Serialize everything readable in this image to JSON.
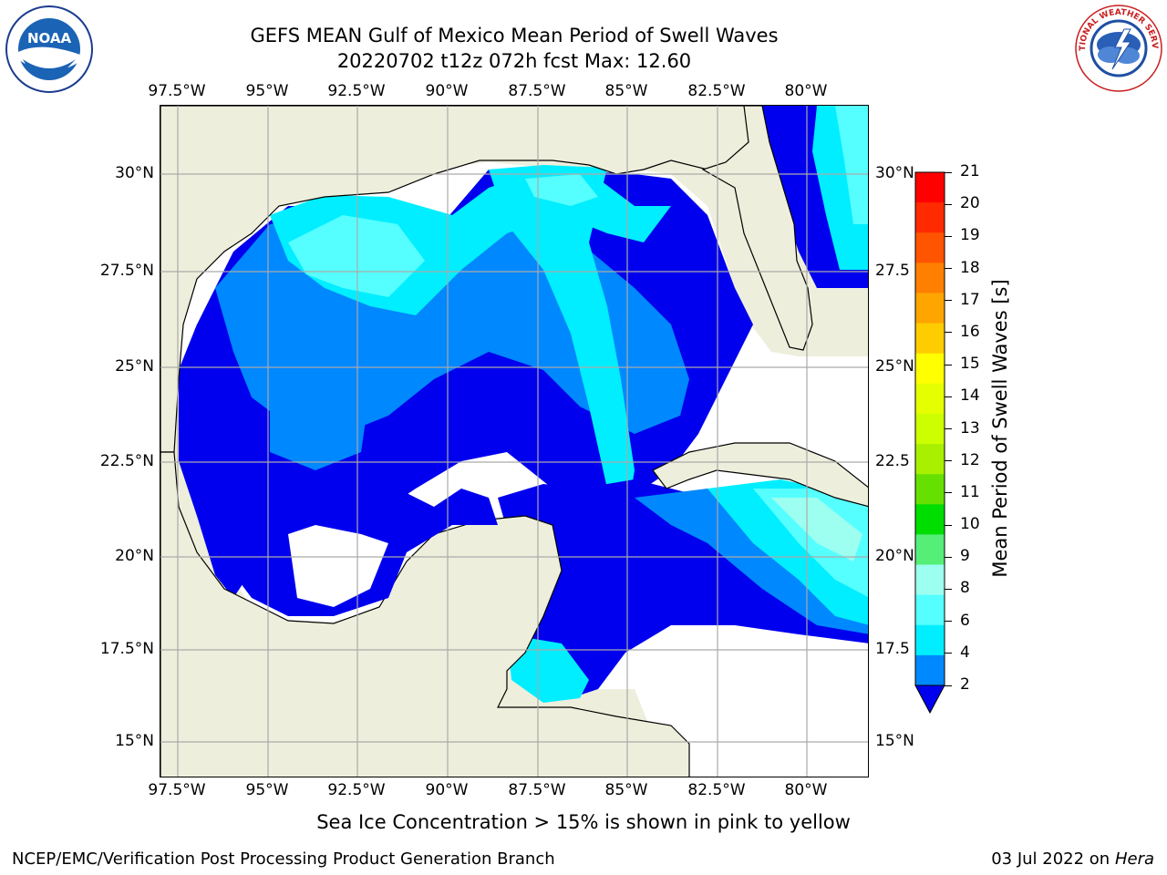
{
  "title": {
    "line1": "GEFS MEAN Gulf of Mexico Mean Period of Swell Waves",
    "line2": "20220702 t12z 072h fcst   Max: 12.60"
  },
  "axes": {
    "lon_labels": [
      "97.5°W",
      "95°W",
      "92.5°W",
      "90°W",
      "87.5°W",
      "85°W",
      "82.5°W",
      "80°W"
    ],
    "lat_labels_left": [
      "30°N",
      "27.5°N",
      "25°N",
      "22.5°N",
      "20°N",
      "17.5°N",
      "15°N"
    ],
    "lat_labels_right": [
      "30°N",
      "27.5",
      "25°N",
      "22.5",
      "20°N",
      "17.5",
      "15°N"
    ]
  },
  "colorbar": {
    "label": "Mean Period of Swell Waves [s]",
    "ticks": [
      "21",
      "20",
      "19",
      "18",
      "17",
      "16",
      "15",
      "14",
      "13",
      "12",
      "11",
      "10",
      "9",
      "8",
      "6",
      "4",
      "2"
    ],
    "colors": [
      "#ff0000",
      "#ff2a00",
      "#ff5500",
      "#ff7f00",
      "#ffa500",
      "#ffcc00",
      "#ffff00",
      "#e6ff00",
      "#ccff00",
      "#a8f000",
      "#66e000",
      "#00dd00",
      "#55ee77",
      "#9dfff0",
      "#55ffff",
      "#00eeff",
      "#0088ff",
      "#0000ee"
    ]
  },
  "caption": "Sea Ice Concentration > 15% is shown in pink to yellow",
  "footer": {
    "left": "NCEP/EMC/Verification Post Processing Product Generation Branch",
    "right_prefix": "03 Jul 2022 on ",
    "right_machine": "Hera"
  },
  "logos": {
    "noaa_text": "NOAA",
    "nws_text": "NATIONAL WEATHER SERVICE"
  }
}
